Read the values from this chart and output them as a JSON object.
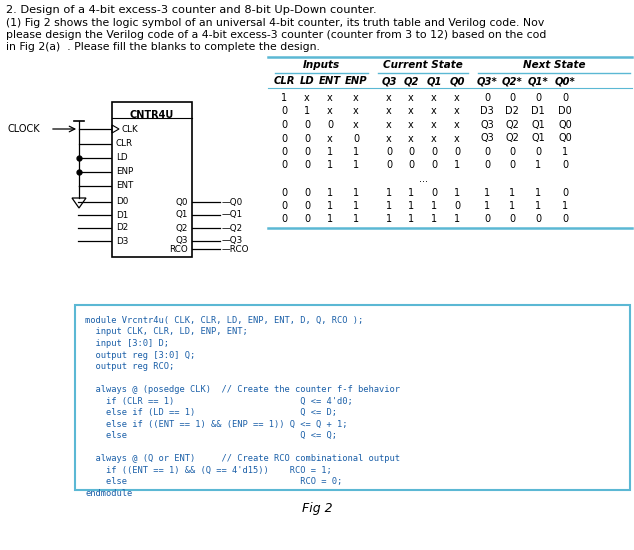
{
  "title_line1": "2. Design of a 4-bit excess-3 counter and 8-bit Up-Down counter.",
  "title_line2": "(1) Fig 2 shows the logic symbol of an universal 4-bit counter, its truth table and Verilog code. Nov",
  "title_line3": "please design the Verilog code of a 4-bit excess-3 counter (counter from 3 to 12) based on the cod",
  "title_line4": "in Fig 2(a)  . Please fill the blanks to complete the design.",
  "col_headers": [
    "CLR",
    "LD",
    "ENT",
    "ENP",
    "Q3",
    "Q2",
    "Q1",
    "Q0",
    "Q3*",
    "Q2*",
    "Q1*",
    "Q0*"
  ],
  "table_rows": [
    [
      "1",
      "x",
      "x",
      "x",
      "x",
      "x",
      "x",
      "x",
      "0",
      "0",
      "0",
      "0"
    ],
    [
      "0",
      "1",
      "x",
      "x",
      "x",
      "x",
      "x",
      "x",
      "D3",
      "D2",
      "D1",
      "D0"
    ],
    [
      "0",
      "0",
      "0",
      "x",
      "x",
      "x",
      "x",
      "x",
      "Q3",
      "Q2",
      "Q1",
      "Q0"
    ],
    [
      "0",
      "0",
      "x",
      "0",
      "x",
      "x",
      "x",
      "x",
      "Q3",
      "Q2",
      "Q1",
      "Q0"
    ],
    [
      "0",
      "0",
      "1",
      "1",
      "0",
      "0",
      "0",
      "0",
      "0",
      "0",
      "0",
      "1"
    ],
    [
      "0",
      "0",
      "1",
      "1",
      "0",
      "0",
      "0",
      "1",
      "0",
      "0",
      "1",
      "0"
    ],
    [
      "...",
      "",
      "",
      "",
      "",
      "",
      "",
      "",
      "",
      "",
      "",
      ""
    ],
    [
      "0",
      "0",
      "1",
      "1",
      "1",
      "1",
      "0",
      "1",
      "1",
      "1",
      "1",
      "0"
    ],
    [
      "0",
      "0",
      "1",
      "1",
      "1",
      "1",
      "1",
      "0",
      "1",
      "1",
      "1",
      "1"
    ],
    [
      "0",
      "0",
      "1",
      "1",
      "1",
      "1",
      "1",
      "1",
      "0",
      "0",
      "0",
      "0"
    ]
  ],
  "code_lines": [
    "module Vrcntr4u( CLK, CLR, LD, ENP, ENT, D, Q, RCO );",
    "  input CLK, CLR, LD, ENP, ENT;",
    "  input [3:0] D;",
    "  output reg [3:0] Q;",
    "  output reg RCO;",
    "",
    "  always @ (posedge CLK)  // Create the counter f-f behavior",
    "    if (CLR == 1)                        Q <= 4'd0;",
    "    else if (LD == 1)                    Q <= D;",
    "    else if ((ENT == 1) && (ENP == 1)) Q <= Q + 1;",
    "    else                                 Q <= Q;",
    "",
    "  always @ (Q or ENT)     // Create RCO combinational output",
    "    if ((ENT == 1) && (Q == 4'd15))    RCO = 1;",
    "    else                                 RCO = 0;",
    "endmodule"
  ],
  "fig_label": "Fig 2",
  "symbol_label": "CNTR4U",
  "clock_label": "CLOCK",
  "background_color": "#ffffff",
  "box_border_color": "#5bb8d4",
  "table_line_color": "#5bb8d4",
  "code_text_color": "#1a5fa8",
  "figsize": [
    6.34,
    5.5
  ],
  "dpi": 100
}
